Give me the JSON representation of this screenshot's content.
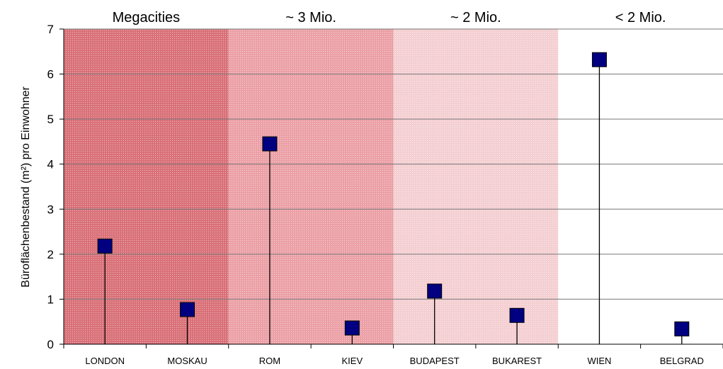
{
  "chart_data": {
    "type": "scatter",
    "ylabel": "Büroflächenbestand (m²) pro Einwohner",
    "ylim": [
      0,
      7
    ],
    "yticks": [
      0,
      1,
      2,
      3,
      4,
      5,
      6,
      7
    ],
    "categories": [
      "LONDON",
      "MOSKAU",
      "ROM",
      "KIEV",
      "BUDAPEST",
      "BUKAREST",
      "WIEN",
      "BELGRAD"
    ],
    "values": [
      2.18,
      0.77,
      4.45,
      0.36,
      1.18,
      0.64,
      6.32,
      0.34
    ],
    "groups": [
      {
        "label": "Megacities",
        "categories": [
          "LONDON",
          "MOSKAU"
        ],
        "color": "#d97078"
      },
      {
        "label": "~ 3 Mio.",
        "categories": [
          "ROM",
          "KIEV"
        ],
        "color": "#eba0a6"
      },
      {
        "label": "~ 2 Mio.",
        "categories": [
          "BUDAPEST",
          "BUKAREST"
        ],
        "color": "#f4cfd2"
      },
      {
        "label": "< 2 Mio.",
        "categories": [
          "WIEN",
          "BELGRAD"
        ],
        "color": "#ffffff"
      }
    ],
    "marker_color": "#000080",
    "grid": true
  }
}
